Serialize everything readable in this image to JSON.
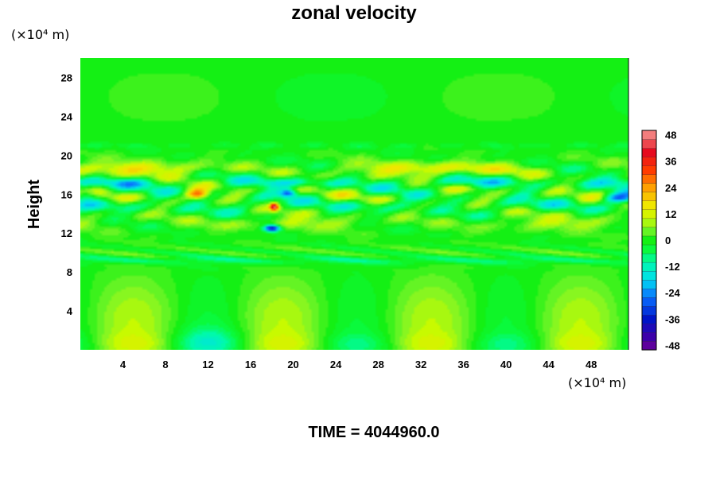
{
  "chart_data": {
    "type": "heatmap",
    "title": "zonal velocity",
    "ylabel": "Height",
    "x_unit_label": "(×10⁴ m)",
    "y_unit_label": "(×10⁴ m)",
    "xlim": [
      0,
      51.5
    ],
    "ylim": [
      0,
      30
    ],
    "x_ticks": [
      "4",
      "8",
      "12",
      "16",
      "20",
      "24",
      "28",
      "32",
      "36",
      "40",
      "44",
      "48"
    ],
    "x_tick_values": [
      4,
      8,
      12,
      16,
      20,
      24,
      28,
      32,
      36,
      40,
      44,
      48
    ],
    "y_ticks": [
      "4",
      "8",
      "12",
      "16",
      "20",
      "24",
      "28"
    ],
    "y_tick_values": [
      4,
      8,
      12,
      16,
      20,
      24,
      28
    ],
    "colorbar": {
      "min": -50,
      "max": 50,
      "tick_labels": [
        "48",
        "36",
        "24",
        "12",
        "0",
        "-12",
        "-24",
        "-36",
        "-48"
      ],
      "tick_values": [
        48,
        36,
        24,
        12,
        0,
        -12,
        -24,
        -36,
        -48
      ]
    },
    "field_summary": [
      {
        "region": "upper layer (height 21–30)",
        "approx_value": 0
      },
      {
        "region": "near-surface cells at x≈5,27,41",
        "approx_value": 8
      },
      {
        "region": "jet centre x≈18, height≈12.5",
        "approx_value": -30
      },
      {
        "region": "jet centre x≈18, height≈15",
        "approx_value": 35
      },
      {
        "region": "jet band height≈18.5",
        "approx_value": 15
      }
    ],
    "annotation": "TIME = 4044960.0"
  }
}
